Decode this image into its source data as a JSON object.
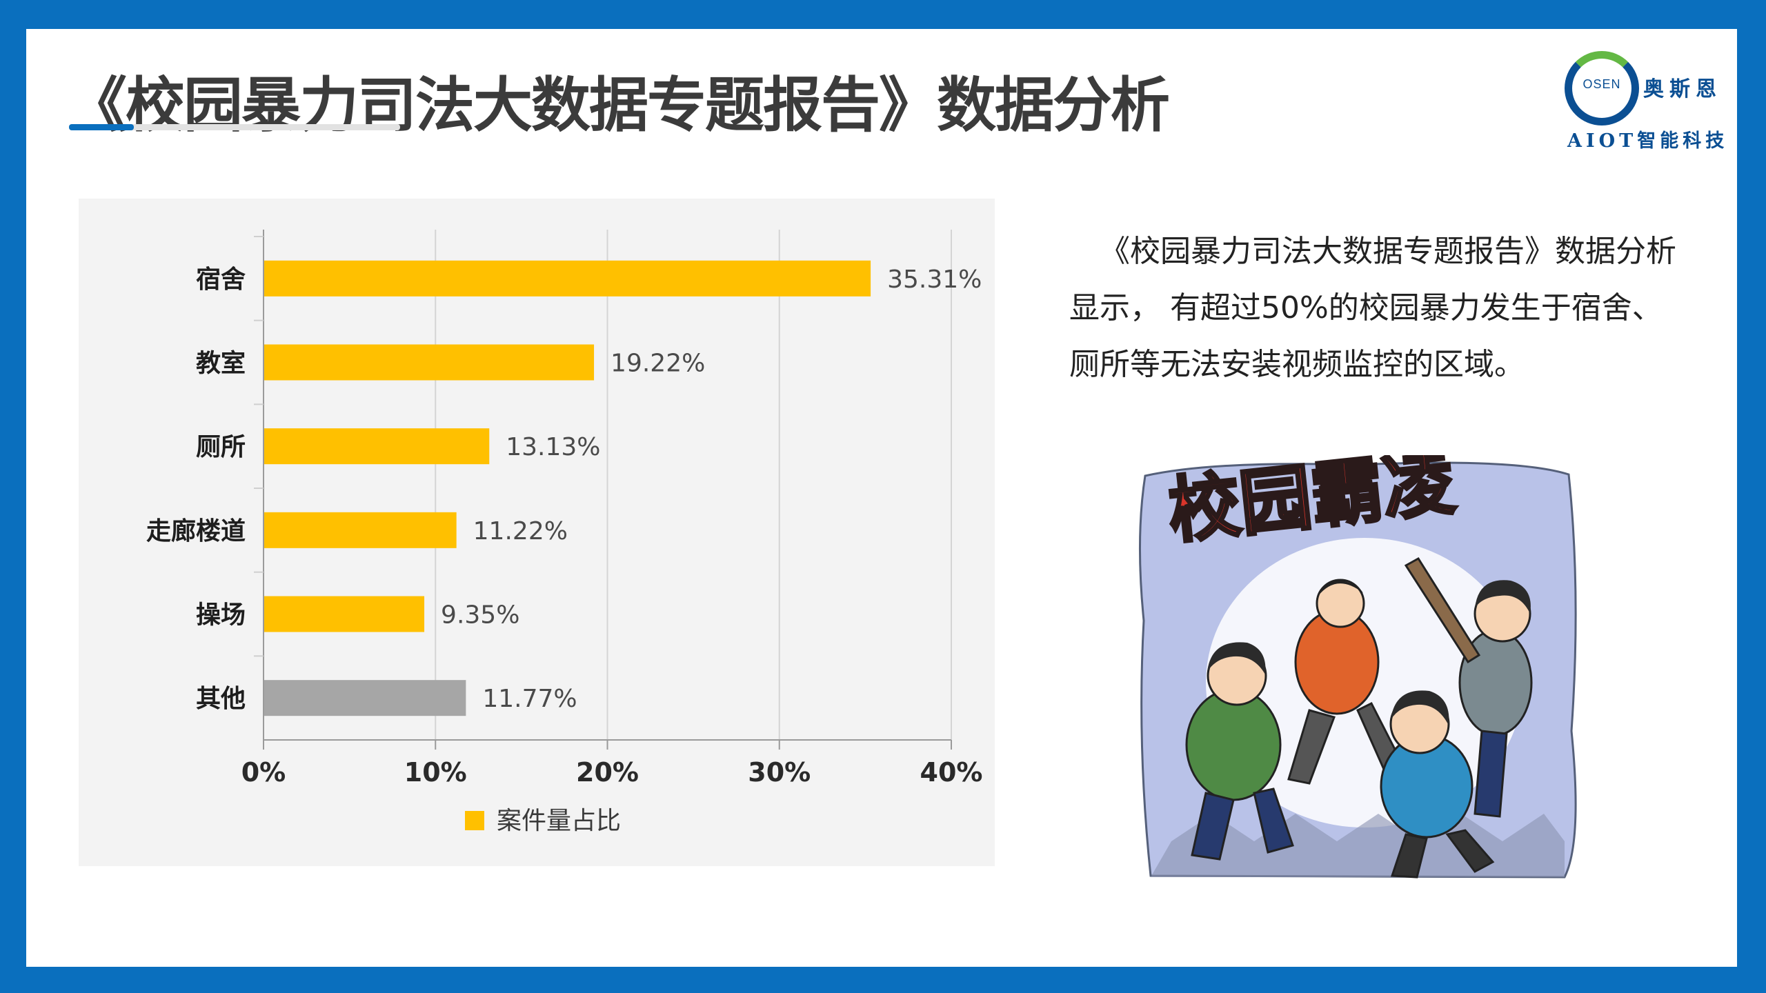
{
  "slide": {
    "title": "《校园暴力司法大数据专题报告》数据分析",
    "logo": {
      "ring_text": "OSEN",
      "name_cn": "奥斯恩",
      "subtitle": "AIOT智能科技"
    },
    "description": "《校园暴力司法大数据专题报告》数据分析显示， 有超过50%的校园暴力发生于宿舍、厕所等无法安装视频监控的区域。",
    "cartoon": {
      "caption": "校园霸凌"
    }
  },
  "colors": {
    "frame": "#0a6fbe",
    "bar_main": "#ffc000",
    "bar_other": "#a6a6a6",
    "title": "#3b3b3b"
  },
  "chart_data": {
    "type": "bar",
    "orientation": "horizontal",
    "categories": [
      "宿舍",
      "教室",
      "厕所",
      "走廊楼道",
      "操场",
      "其他"
    ],
    "series": [
      {
        "name": "案件量占比",
        "values": [
          35.31,
          19.22,
          13.13,
          11.22,
          9.35,
          11.77
        ],
        "data_labels": [
          "35.31%",
          "19.22%",
          "13.13%",
          "11.22%",
          "9.35%",
          "11.77%"
        ]
      }
    ],
    "bar_colors": [
      "#ffc000",
      "#ffc000",
      "#ffc000",
      "#ffc000",
      "#ffc000",
      "#a6a6a6"
    ],
    "x_ticks": [
      0,
      10,
      20,
      30,
      40
    ],
    "x_tick_labels": [
      "0%",
      "10%",
      "20%",
      "30%",
      "40%"
    ],
    "xlim": [
      0,
      40
    ],
    "grid": "vertical",
    "legend": "bottom",
    "legend_label": "案件量占比"
  }
}
